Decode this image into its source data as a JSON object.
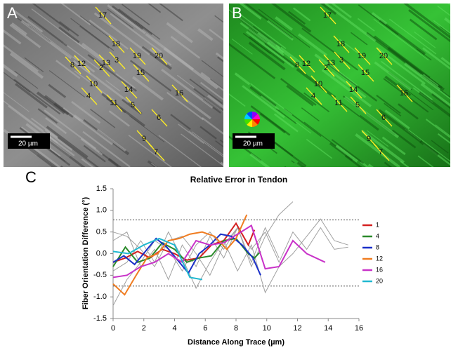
{
  "figure": {
    "panels": [
      "A",
      "B",
      "C"
    ],
    "trace_labels": [
      "17",
      "18",
      "8",
      "12",
      "2",
      "13",
      "3",
      "19",
      "20",
      "15",
      "10",
      "14",
      "16",
      "4",
      "11",
      "5",
      "6",
      "9",
      "7"
    ],
    "scale_bar": "20 µm"
  },
  "chart_data": {
    "type": "line",
    "title": "Relative Error in Tendon",
    "x_label": "Distance Along Trace (µm)",
    "y_label": "Fiber Orientation Difference (°)",
    "xlim": [
      0,
      16
    ],
    "xticks": [
      0,
      2,
      4,
      6,
      8,
      10,
      12,
      14,
      16
    ],
    "ylim": [
      -1.5,
      1.5
    ],
    "yticks": [
      -1.5,
      {
        "value": -1,
        "label": "-1.0"
      },
      -0.5,
      {
        "value": 0,
        "label": "0.0"
      },
      0.5,
      {
        "value": 1,
        "label": "1.0"
      },
      1.5
    ],
    "reference_lines": [
      0.78,
      -0.75
    ],
    "background_color": "#a0a0a0",
    "background_series": [
      {
        "x": [
          0,
          0.9,
          1.8,
          2.7,
          3.6,
          4.5,
          5.4,
          6.3,
          7.2,
          8.1,
          9,
          9.9,
          10.8,
          11.7
        ],
        "values": [
          -1.2,
          -0.6,
          -0.2,
          0.3,
          0.1,
          -0.4,
          0.2,
          0.5,
          0.1,
          0.6,
          -0.3,
          0.4,
          0.9,
          1.2
        ]
      },
      {
        "x": [
          0,
          0.9,
          1.8,
          2.7,
          3.6,
          4.5,
          5.4,
          6.3,
          7.2,
          8.1,
          9,
          9.9,
          10.8,
          11.7,
          12.6,
          13.5,
          14.4,
          15.3
        ],
        "values": [
          0.5,
          0.4,
          0.1,
          -0.3,
          0.3,
          0.4,
          0.0,
          -0.5,
          0.2,
          0.6,
          0.1,
          0.5,
          -0.2,
          0.5,
          0.1,
          0.6,
          0.1,
          0.15
        ]
      },
      {
        "x": [
          0,
          0.9,
          1.8,
          2.7,
          3.6,
          4.5,
          5.4,
          6.3,
          7.2,
          8.1,
          9,
          9.9,
          10.8
        ],
        "values": [
          0.3,
          0.5,
          -0.3,
          0.1,
          -0.6,
          0.2,
          -0.3,
          0.4,
          -0.1,
          0.6,
          -0.2,
          0.6,
          -0.1
        ]
      },
      {
        "x": [
          0,
          0.9,
          1.8,
          2.7,
          3.6,
          4.5,
          5.4,
          6.3,
          7.2,
          8.1,
          9,
          9.9,
          10.8,
          11.7,
          12.6,
          13.5,
          14.4,
          15.3
        ],
        "values": [
          -0.4,
          -0.2,
          0.3,
          -0.2,
          0.5,
          -0.1,
          -0.8,
          -0.2,
          0.3,
          -0.4,
          0.2,
          -0.9,
          -0.3,
          0.0,
          0.4,
          0.8,
          0.3,
          0.2
        ]
      }
    ],
    "series": [
      {
        "name": "1",
        "color": "#d42020",
        "x": [
          0,
          0.8,
          1.6,
          2.4,
          3.2,
          4,
          4.8,
          5.6,
          6.4,
          7.2,
          8,
          8.4,
          8.8,
          9.2
        ],
        "values": [
          -0.2,
          -0.1,
          0.05,
          -0.1,
          0.1,
          0.0,
          -0.15,
          -0.1,
          0.2,
          0.3,
          0.7,
          0.45,
          0.2,
          0.55
        ]
      },
      {
        "name": "4",
        "color": "#2a8a2a",
        "x": [
          0,
          0.8,
          1.6,
          2.4,
          3.2,
          4,
          4.8,
          5.6,
          6.4,
          7.2,
          8,
          8.8,
          9.2,
          9.6
        ],
        "values": [
          -0.3,
          0.15,
          -0.2,
          -0.1,
          0.25,
          0.1,
          -0.2,
          -0.1,
          -0.05,
          0.3,
          0.35,
          0.0,
          -0.1,
          0.05
        ]
      },
      {
        "name": "8",
        "color": "#1a2fc8",
        "x": [
          0,
          0.7,
          1.4,
          2.1,
          2.8,
          3.5,
          4.9,
          5.6,
          6.3,
          7,
          7.7,
          8.4,
          9.1,
          9.6
        ],
        "values": [
          -0.2,
          -0.05,
          -0.25,
          0.05,
          0.35,
          0.15,
          -0.45,
          0.0,
          0.2,
          0.45,
          0.4,
          0.2,
          -0.1,
          -0.5
        ]
      },
      {
        "name": "12",
        "color": "#f07c20",
        "x": [
          0,
          0.75,
          1.5,
          2.2,
          2.9,
          3.6,
          4.3,
          5,
          5.8,
          6.6,
          7.4,
          8,
          8.7
        ],
        "values": [
          -0.7,
          -0.95,
          -0.5,
          -0.1,
          0.0,
          0.3,
          0.35,
          0.45,
          0.5,
          0.4,
          0.1,
          0.35,
          0.9
        ]
      },
      {
        "name": "16",
        "color": "#c832c8",
        "x": [
          0,
          0.9,
          1.8,
          2.7,
          3.6,
          4.5,
          5.4,
          6.3,
          7.2,
          8.1,
          9,
          9.9,
          10.8,
          11.7,
          12.6,
          13.8
        ],
        "values": [
          -0.55,
          -0.5,
          -0.3,
          -0.2,
          0.0,
          -0.2,
          0.3,
          0.2,
          0.25,
          0.45,
          0.65,
          -0.35,
          -0.3,
          0.3,
          0.0,
          -0.2
        ]
      },
      {
        "name": "20",
        "color": "#20b8d0",
        "x": [
          0,
          1,
          2,
          3,
          4,
          5,
          5.8
        ],
        "values": [
          0.05,
          0.0,
          0.2,
          0.35,
          0.2,
          -0.55,
          -0.6
        ]
      }
    ]
  }
}
